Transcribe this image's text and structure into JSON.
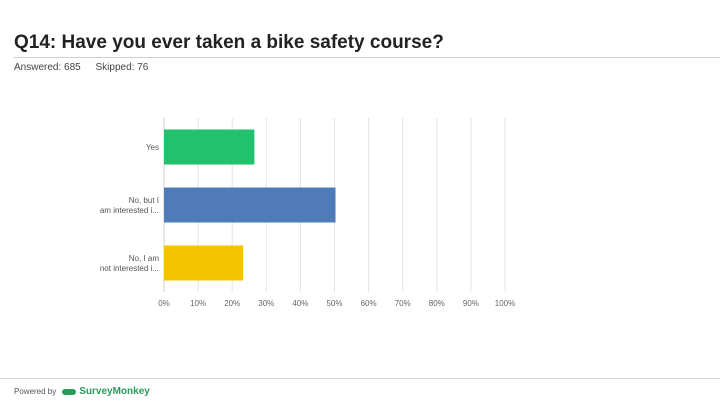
{
  "question": "Q14: Have you ever taken a bike safety course?",
  "answered_label": "Answered: 685",
  "skipped_label": "Skipped: 76",
  "footer": {
    "powered_by": "Powered by",
    "logo_text": "SurveyMonkey",
    "logo_icon": "surveymonkey-logo-icon",
    "logo_color": "#2a9a5a"
  },
  "chart_data": {
    "type": "bar",
    "orientation": "horizontal",
    "categories": [
      "Yes",
      "No, but I am interested i...",
      "No, I am not interested i..."
    ],
    "values": [
      26.5,
      50.3,
      23.2
    ],
    "colors": [
      "#21c26e",
      "#4f7cb8",
      "#f6c200"
    ],
    "xlim": [
      0,
      100
    ],
    "xticks": [
      "0%",
      "10%",
      "20%",
      "30%",
      "40%",
      "50%",
      "60%",
      "70%",
      "80%",
      "90%",
      "100%"
    ],
    "grid": true
  }
}
